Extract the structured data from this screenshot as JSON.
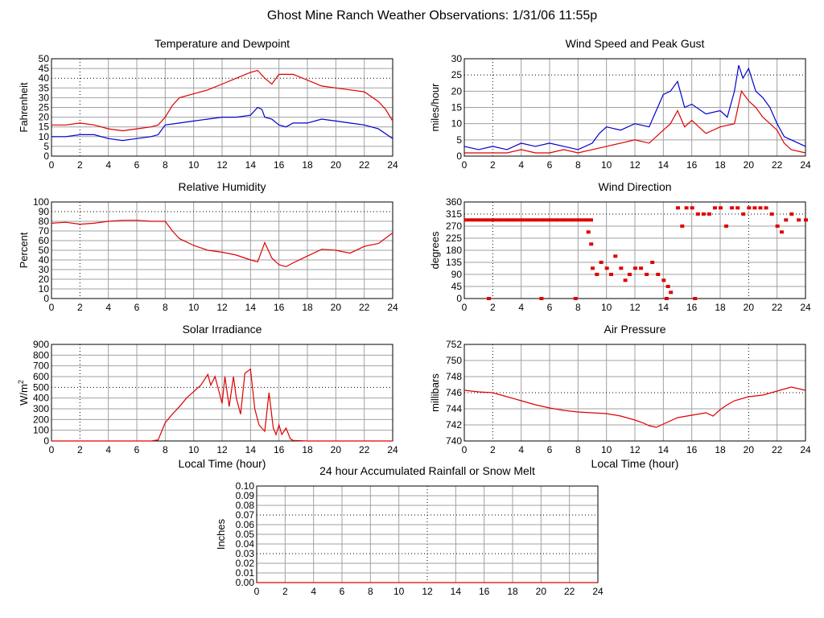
{
  "page_title": "Ghost Mine Ranch Weather Observations: 1/31/06 11:55p",
  "colors": {
    "red": "#e00000",
    "blue": "#0000d0",
    "grid": "#a0a0a0",
    "major_grid": "#000000"
  },
  "chart_data": [
    {
      "id": "temperature",
      "type": "line",
      "title": "Temperature and Dewpoint",
      "xlabel": "",
      "ylabel": "Fahrenheit",
      "xlim": [
        0,
        24
      ],
      "ylim": [
        0,
        50
      ],
      "x_ticks": [
        0,
        2,
        4,
        6,
        8,
        10,
        12,
        14,
        16,
        18,
        20,
        22,
        24
      ],
      "y_ticks": [
        0,
        5,
        10,
        15,
        20,
        25,
        30,
        35,
        40,
        45,
        50
      ],
      "grid": true,
      "series": [
        {
          "color": "#e00000",
          "x": [
            0,
            1,
            2,
            3,
            4,
            5,
            6,
            7,
            7.5,
            8,
            8.5,
            9,
            10,
            11,
            12,
            13,
            14,
            14.5,
            15,
            15.5,
            16,
            17,
            18,
            19,
            20,
            21,
            22,
            23,
            23.5,
            24
          ],
          "values": [
            16,
            16,
            17,
            16,
            14,
            13,
            14,
            15,
            16,
            20,
            26,
            30,
            32,
            34,
            37,
            40,
            43,
            44,
            40,
            37,
            42,
            42,
            39,
            36,
            35,
            34,
            33,
            28,
            24,
            18
          ]
        },
        {
          "color": "#0000d0",
          "x": [
            0,
            1,
            2,
            3,
            4,
            5,
            6,
            7,
            7.5,
            8,
            9,
            10,
            11,
            12,
            13,
            14,
            14.5,
            14.8,
            15,
            15.5,
            16,
            16.5,
            17,
            18,
            19,
            20,
            21,
            22,
            23,
            24
          ],
          "values": [
            10,
            10,
            11,
            11,
            9,
            8,
            9,
            10,
            11,
            16,
            17,
            18,
            19,
            20,
            20,
            21,
            25,
            24,
            20,
            19,
            16,
            15,
            17,
            17,
            19,
            18,
            17,
            16,
            14,
            9
          ]
        }
      ]
    },
    {
      "id": "wind-speed",
      "type": "line",
      "title": "Wind Speed and Peak Gust",
      "xlabel": "",
      "ylabel": "miles/hour",
      "xlim": [
        0,
        24
      ],
      "ylim": [
        0,
        30
      ],
      "x_ticks": [
        0,
        2,
        4,
        6,
        8,
        10,
        12,
        14,
        16,
        18,
        20,
        22,
        24
      ],
      "y_ticks": [
        0,
        5,
        10,
        15,
        20,
        25,
        30
      ],
      "grid": true,
      "series": [
        {
          "color": "#0000d0",
          "x": [
            0,
            1,
            2,
            3,
            4,
            5,
            6,
            7,
            8,
            9,
            9.5,
            10,
            11,
            12,
            13,
            13.5,
            14,
            14.5,
            15,
            15.5,
            16,
            17,
            18,
            18.5,
            19,
            19.3,
            19.6,
            20,
            20.5,
            21,
            21.5,
            22,
            22.5,
            23,
            24
          ],
          "values": [
            3,
            2,
            3,
            2,
            4,
            3,
            4,
            3,
            2,
            4,
            7,
            9,
            8,
            10,
            9,
            14,
            19,
            20,
            23,
            15,
            16,
            13,
            14,
            12,
            20,
            28,
            24,
            27,
            20,
            18,
            15,
            10,
            6,
            5,
            3
          ]
        },
        {
          "color": "#e00000",
          "x": [
            0,
            1,
            2,
            3,
            4,
            5,
            6,
            7,
            8,
            9,
            10,
            11,
            12,
            13,
            14,
            14.5,
            15,
            15.5,
            16,
            17,
            18,
            19,
            19.5,
            20,
            20.5,
            21,
            22,
            22.5,
            23,
            24
          ],
          "values": [
            1,
            1,
            1,
            1,
            2,
            1,
            1,
            2,
            1,
            2,
            3,
            4,
            5,
            4,
            8,
            10,
            14,
            9,
            11,
            7,
            9,
            10,
            20,
            17,
            15,
            12,
            8,
            4,
            2,
            1
          ]
        }
      ]
    },
    {
      "id": "humidity",
      "type": "line",
      "title": "Relative Humidity",
      "xlabel": "",
      "ylabel": "Percent",
      "xlim": [
        0,
        24
      ],
      "ylim": [
        0,
        100
      ],
      "x_ticks": [
        0,
        2,
        4,
        6,
        8,
        10,
        12,
        14,
        16,
        18,
        20,
        22,
        24
      ],
      "y_ticks": [
        0,
        10,
        20,
        30,
        40,
        50,
        60,
        70,
        80,
        90,
        100
      ],
      "grid": true,
      "series": [
        {
          "color": "#e00000",
          "x": [
            0,
            1,
            2,
            3,
            4,
            5,
            6,
            7,
            8,
            8.5,
            9,
            10,
            11,
            12,
            13,
            14,
            14.5,
            15,
            15.5,
            16,
            16.5,
            17,
            18,
            19,
            20,
            21,
            22,
            23,
            24
          ],
          "values": [
            78,
            79,
            77,
            78,
            80,
            81,
            81,
            80,
            80,
            70,
            62,
            55,
            50,
            48,
            45,
            40,
            38,
            58,
            42,
            35,
            33,
            37,
            44,
            51,
            50,
            47,
            54,
            57,
            68
          ]
        }
      ]
    },
    {
      "id": "wind-direction",
      "type": "scatter",
      "title": "Wind Direction",
      "xlabel": "",
      "ylabel": "degrees",
      "xlim": [
        0,
        24
      ],
      "ylim": [
        0,
        360
      ],
      "x_ticks": [
        0,
        2,
        4,
        6,
        8,
        10,
        12,
        14,
        16,
        18,
        20,
        22,
        24
      ],
      "y_ticks": [
        0,
        45,
        90,
        135,
        180,
        225,
        270,
        315,
        360
      ],
      "grid": true,
      "series": [
        {
          "color": "#e00000",
          "x": [
            0,
            0.5,
            1,
            1.5,
            2,
            2.5,
            3,
            3.5,
            4,
            4.5,
            5,
            5.5,
            6,
            6.5,
            7,
            7.5,
            8,
            8.5,
            8.7,
            8.9,
            9,
            9.3,
            9.6,
            10,
            10.3,
            10.6,
            11,
            11.3,
            11.6,
            12,
            12.4,
            12.8,
            13.2,
            13.6,
            14,
            14.3,
            14.5,
            15,
            15.3,
            15.6,
            16,
            16.4,
            16.8,
            17.2,
            17.6,
            18,
            18.4,
            18.8,
            19.2,
            19.6,
            20,
            20.4,
            20.8,
            21.2,
            21.6,
            22,
            22.3,
            22.6,
            23,
            23.5,
            24,
            1.7,
            5.4,
            7.8,
            14.2,
            16.2
          ],
          "values": [
            293,
            293,
            293,
            293,
            293,
            293,
            293,
            293,
            293,
            293,
            293,
            293,
            293,
            293,
            293,
            293,
            293,
            293,
            248,
            203,
            113,
            90,
            135,
            113,
            90,
            158,
            113,
            68,
            90,
            113,
            113,
            90,
            135,
            90,
            68,
            45,
            23,
            338,
            270,
            338,
            338,
            315,
            315,
            315,
            338,
            338,
            270,
            338,
            338,
            315,
            338,
            338,
            338,
            338,
            315,
            270,
            248,
            293,
            315,
            293,
            293,
            0,
            0,
            0,
            0,
            0
          ]
        }
      ]
    },
    {
      "id": "solar",
      "type": "line",
      "title": "Solar Irradiance",
      "xlabel": "Local Time (hour)",
      "ylabel": "W/m",
      "ylabel_sup": "2",
      "xlim": [
        0,
        24
      ],
      "ylim": [
        0,
        900
      ],
      "x_ticks": [
        0,
        2,
        4,
        6,
        8,
        10,
        12,
        14,
        16,
        18,
        20,
        22,
        24
      ],
      "y_ticks": [
        0,
        100,
        200,
        300,
        400,
        500,
        600,
        700,
        800,
        900
      ],
      "grid": true,
      "series": [
        {
          "color": "#e00000",
          "x": [
            0,
            2,
            4,
            6,
            7,
            7.5,
            8,
            8.5,
            9,
            9.5,
            10,
            10.5,
            11,
            11.2,
            11.5,
            11.8,
            12,
            12.2,
            12.5,
            12.8,
            13,
            13.3,
            13.6,
            14,
            14.3,
            14.6,
            15,
            15.3,
            15.6,
            15.8,
            16,
            16.2,
            16.5,
            16.8,
            17,
            18,
            20,
            22,
            24
          ],
          "values": [
            0,
            0,
            0,
            0,
            0,
            10,
            170,
            250,
            320,
            400,
            460,
            520,
            620,
            520,
            600,
            450,
            350,
            600,
            320,
            600,
            400,
            250,
            630,
            670,
            300,
            150,
            90,
            450,
            120,
            60,
            150,
            60,
            120,
            20,
            5,
            0,
            0,
            0,
            0
          ]
        }
      ]
    },
    {
      "id": "pressure",
      "type": "line",
      "title": "Air Pressure",
      "xlabel": "Local Time (hour)",
      "ylabel": "millibars",
      "xlim": [
        0,
        24
      ],
      "ylim": [
        740,
        752
      ],
      "x_ticks": [
        0,
        2,
        4,
        6,
        8,
        10,
        12,
        14,
        16,
        18,
        20,
        22,
        24
      ],
      "y_ticks": [
        740,
        742,
        744,
        746,
        748,
        750,
        752
      ],
      "grid": true,
      "series": [
        {
          "color": "#e00000",
          "x": [
            0,
            1,
            2,
            3,
            4,
            5,
            6,
            7,
            8,
            9,
            10,
            11,
            12,
            12.5,
            13,
            13.5,
            14,
            15,
            16,
            17,
            17.5,
            18,
            18.5,
            19,
            20,
            21,
            22,
            23,
            24
          ],
          "values": [
            746.3,
            746.1,
            746.0,
            745.5,
            745.0,
            744.5,
            744.1,
            743.8,
            743.6,
            743.5,
            743.4,
            743.1,
            742.6,
            742.3,
            741.9,
            741.7,
            742.1,
            742.9,
            743.2,
            743.5,
            743.1,
            743.9,
            744.5,
            745.0,
            745.5,
            745.7,
            746.2,
            746.7,
            746.3
          ]
        }
      ]
    },
    {
      "id": "rainfall",
      "type": "line",
      "title": "24 hour Accumulated Rainfall or Snow Melt",
      "xlabel": "",
      "ylabel": "Inches",
      "xlim": [
        0,
        24
      ],
      "ylim": [
        0,
        0.1
      ],
      "x_ticks": [
        0,
        2,
        4,
        6,
        8,
        10,
        12,
        14,
        16,
        18,
        20,
        22,
        24
      ],
      "y_ticks": [
        0,
        0.01,
        0.02,
        0.03,
        0.04,
        0.05,
        0.06,
        0.07,
        0.08,
        0.09,
        0.1
      ],
      "y_tick_labels": [
        "0.00",
        "0.01",
        "0.02",
        "0.03",
        "0.04",
        "0.05",
        "0.06",
        "0.07",
        "0.08",
        "0.09",
        "0.10"
      ],
      "grid": true,
      "series": [
        {
          "color": "#e00000",
          "x": [
            0,
            24
          ],
          "values": [
            0,
            0
          ]
        }
      ]
    }
  ]
}
